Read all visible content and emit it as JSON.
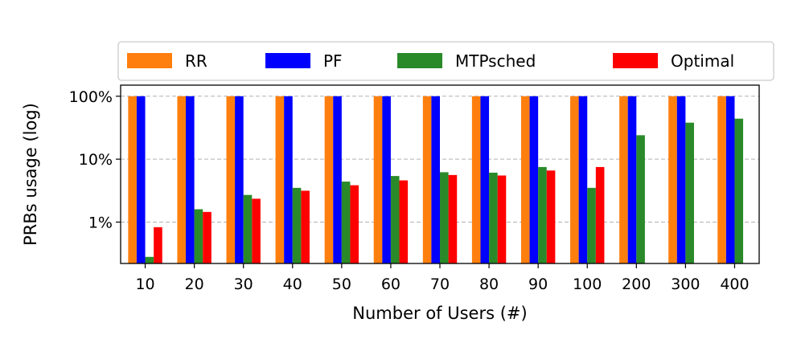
{
  "chart_data": {
    "type": "bar",
    "title": "",
    "xlabel": "Number of Users (#)",
    "ylabel": "PRBs usage (log)",
    "y_scale": "log",
    "ylim": [
      0.22,
      150
    ],
    "yticks": [
      {
        "value": 1,
        "label": "1%"
      },
      {
        "value": 10,
        "label": "10%"
      },
      {
        "value": 100,
        "label": "100%"
      }
    ],
    "grid": "horizontal dashed",
    "legend_position": "top",
    "categories": [
      "10",
      "20",
      "30",
      "40",
      "50",
      "60",
      "70",
      "80",
      "90",
      "100",
      "200",
      "300",
      "400"
    ],
    "series": [
      {
        "name": "RR",
        "color": "#ff7f0e",
        "values": [
          100,
          100,
          100,
          100,
          100,
          100,
          100,
          100,
          100,
          100,
          100,
          100,
          100
        ]
      },
      {
        "name": "PF",
        "color": "#0000ff",
        "values": [
          100,
          100,
          100,
          100,
          100,
          100,
          100,
          100,
          100,
          100,
          100,
          100,
          100
        ]
      },
      {
        "name": "MTPsched",
        "color": "#2a8a2a",
        "values": [
          0.28,
          1.6,
          2.7,
          3.5,
          4.4,
          5.4,
          6.2,
          6.1,
          7.5,
          3.5,
          24,
          38,
          44
        ]
      },
      {
        "name": "Optimal",
        "color": "#ff0000",
        "values": [
          0.83,
          1.45,
          2.35,
          3.15,
          3.85,
          4.6,
          5.6,
          5.5,
          6.6,
          7.5,
          null,
          null,
          null
        ]
      }
    ]
  }
}
